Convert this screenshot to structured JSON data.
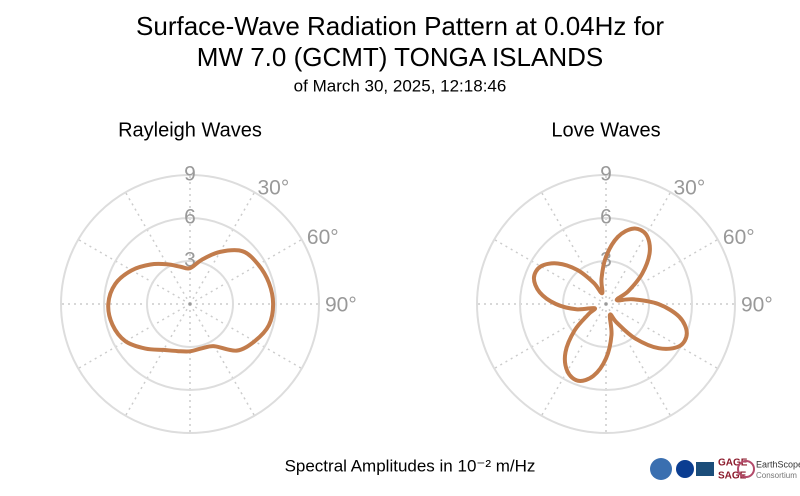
{
  "header": {
    "title": [
      "Surface-Wave Radiation Pattern at 0.04Hz for",
      "MW 7.0 (GCMT) TONGA ISLANDS"
    ],
    "subtitle": "of March 30, 2025, 12:18:46"
  },
  "footer": {
    "axis_label": "Spectral Amplitudes in 10⁻² m/Hz"
  },
  "logos": [
    "GAGE",
    "SAGE",
    "EarthScope",
    "Consortium"
  ],
  "chart_data": [
    {
      "type": "polar",
      "title": "Rayleigh Waves",
      "color": "#c27c4c",
      "theta": [
        0,
        15,
        30,
        45,
        60,
        75,
        90,
        105,
        120,
        135,
        150,
        165,
        180,
        195,
        210,
        225,
        240,
        255,
        270,
        285,
        300,
        315,
        330,
        345
      ],
      "values": [
        2.5,
        3.2,
        4.2,
        5.2,
        5.5,
        5.7,
        5.8,
        5.7,
        5.2,
        4.6,
        3.4,
        3.2,
        3.3,
        3.4,
        3.7,
        4.4,
        5.2,
        5.6,
        5.7,
        5.4,
        4.7,
        3.9,
        3.2,
        2.7
      ],
      "rlim": [
        0,
        9
      ],
      "rticks": [
        3,
        6,
        9
      ],
      "thetagrid": [
        0,
        30,
        60,
        90,
        120,
        150,
        180,
        210,
        240,
        270,
        300,
        330
      ],
      "thetaticks": [
        {
          "value": 30,
          "label": "30°"
        },
        {
          "value": 60,
          "label": "60°"
        },
        {
          "value": 90,
          "label": "90°"
        }
      ]
    },
    {
      "type": "polar",
      "title": "Love Waves",
      "color": "#c27c4c",
      "theta": [
        0,
        10,
        20,
        30,
        40,
        50,
        60,
        70,
        80,
        90,
        100,
        110,
        120,
        130,
        140,
        150,
        160,
        170,
        180,
        190,
        200,
        210,
        220,
        230,
        240,
        250,
        260,
        270,
        280,
        290,
        300,
        310,
        320,
        330,
        340,
        350
      ],
      "values": [
        3.3,
        4.75,
        5.6,
        5.6,
        4.75,
        3.3,
        1.8,
        0.8,
        1.9,
        3.65,
        5.2,
        6.0,
        5.9,
        4.8,
        3.1,
        1.5,
        0.8,
        2.2,
        3.8,
        5.1,
        5.7,
        5.4,
        4.4,
        2.85,
        1.4,
        0.85,
        2.1,
        3.5,
        4.7,
        5.35,
        5.25,
        4.4,
        3.1,
        1.7,
        0.8,
        1.8
      ],
      "rlim": [
        0,
        9
      ],
      "rticks": [
        3,
        6,
        9
      ],
      "thetagrid": [
        0,
        30,
        60,
        90,
        120,
        150,
        180,
        210,
        240,
        270,
        300,
        330
      ],
      "thetaticks": [
        {
          "value": 30,
          "label": "30°"
        },
        {
          "value": 60,
          "label": "60°"
        },
        {
          "value": 90,
          "label": "90°"
        }
      ]
    }
  ]
}
